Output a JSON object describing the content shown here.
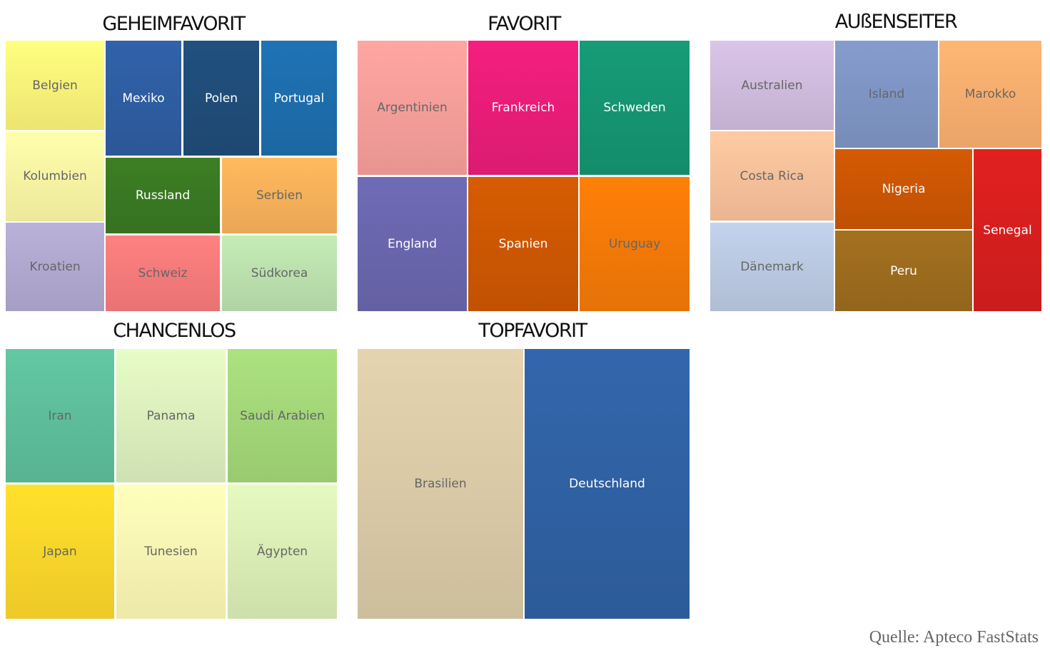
{
  "chart_data": {
    "type": "treemap",
    "groups": [
      {
        "title": "GEHEIMFAVORIT",
        "items": [
          {
            "name": "Belgien",
            "color": "#fff57a",
            "text": "#666666"
          },
          {
            "name": "Kolumbien",
            "color": "#fffaa6",
            "text": "#666666"
          },
          {
            "name": "Kroatien",
            "color": "#b3aad2",
            "text": "#666666"
          },
          {
            "name": "Mexiko",
            "color": "#2f5ea3",
            "text": "#ffffff"
          },
          {
            "name": "Polen",
            "color": "#204d7a",
            "text": "#ffffff"
          },
          {
            "name": "Portugal",
            "color": "#1e6fae",
            "text": "#ffffff"
          },
          {
            "name": "Russland",
            "color": "#3a7a22",
            "text": "#ffffff"
          },
          {
            "name": "Serbien",
            "color": "#fdb35a",
            "text": "#666666"
          },
          {
            "name": "Schweiz",
            "color": "#f97c7c",
            "text": "#666666"
          },
          {
            "name": "Südkorea",
            "color": "#bde3af",
            "text": "#666666"
          }
        ]
      },
      {
        "title": "FAVORIT",
        "items": [
          {
            "name": "Argentinien",
            "color": "#f9a09c",
            "text": "#666666"
          },
          {
            "name": "Frankreich",
            "color": "#ec1d7a",
            "text": "#ffffff"
          },
          {
            "name": "Schweden",
            "color": "#159672",
            "text": "#ffffff"
          },
          {
            "name": "England",
            "color": "#6b67af",
            "text": "#ffffff"
          },
          {
            "name": "Spanien",
            "color": "#cf5802",
            "text": "#ffffff"
          },
          {
            "name": "Uruguay",
            "color": "#f77b08",
            "text": "#666666"
          }
        ]
      },
      {
        "title": "AUßENSEITER",
        "items": [
          {
            "name": "Australien",
            "color": "#d2bde0",
            "text": "#666666"
          },
          {
            "name": "Island",
            "color": "#8096c6",
            "text": "#666666"
          },
          {
            "name": "Marokko",
            "color": "#fdb070",
            "text": "#666666"
          },
          {
            "name": "Costa Rica",
            "color": "#fcc39c",
            "text": "#666666"
          },
          {
            "name": "Nigeria",
            "color": "#cd5703",
            "text": "#ffffff"
          },
          {
            "name": "Senegal",
            "color": "#d91f1f",
            "text": "#ffffff"
          },
          {
            "name": "Dänemark",
            "color": "#bccbe4",
            "text": "#666666"
          },
          {
            "name": "Peru",
            "color": "#9e6d1e",
            "text": "#ffffff"
          }
        ]
      },
      {
        "title": "CHANCENLOS",
        "items": [
          {
            "name": "Iran",
            "color": "#5fc09d",
            "text": "#666666"
          },
          {
            "name": "Panama",
            "color": "#dff2bf",
            "text": "#666666"
          },
          {
            "name": "Saudi Arabien",
            "color": "#a5d97a",
            "text": "#666666"
          },
          {
            "name": "Japan",
            "color": "#ffd82a",
            "text": "#666666"
          },
          {
            "name": "Tunesien",
            "color": "#fffbb5",
            "text": "#666666"
          },
          {
            "name": "Ägypten",
            "color": "#dcf0b8",
            "text": "#666666"
          }
        ]
      },
      {
        "title": "TOPFAVORIT",
        "items": [
          {
            "name": "Brasilien",
            "color": "#dccca8",
            "text": "#666666"
          },
          {
            "name": "Deutschland",
            "color": "#3062a5",
            "text": "#ffffff"
          }
        ]
      }
    ]
  },
  "source": "Quelle: Apteco FastStats"
}
